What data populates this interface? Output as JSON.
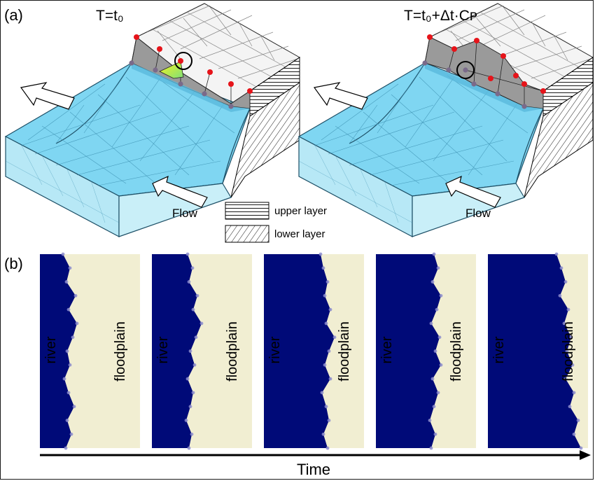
{
  "panel_a": {
    "label": "(a)",
    "left_title": "T=t₀",
    "right_title": "T=t₀+Δt·Cᴘ",
    "flow_label": "Flow",
    "legend": {
      "upper": "upper layer",
      "lower": "lower layer"
    }
  },
  "panel_b": {
    "label": "(b)",
    "river_label": "river",
    "floodplain_label": "floodplain",
    "time_label": "Time",
    "strip_count": 5
  },
  "colors": {
    "water_top": "#7fd6f2",
    "water_side": "#c9eff8",
    "water_front": "#b7e8f6",
    "mesh_line": "#3b8fb0",
    "bank_grey": "#9a9a9a",
    "bank_top": "#f4f4f4",
    "node_red": "#e6141a",
    "node_purple": "#7a6a8a",
    "highlight_yellow": "#f2f21e",
    "highlight_green": "#8fe07a",
    "river_blue": "#000a78",
    "floodplain": "#f1eed2",
    "edge_dot": "#8c8ccc"
  }
}
